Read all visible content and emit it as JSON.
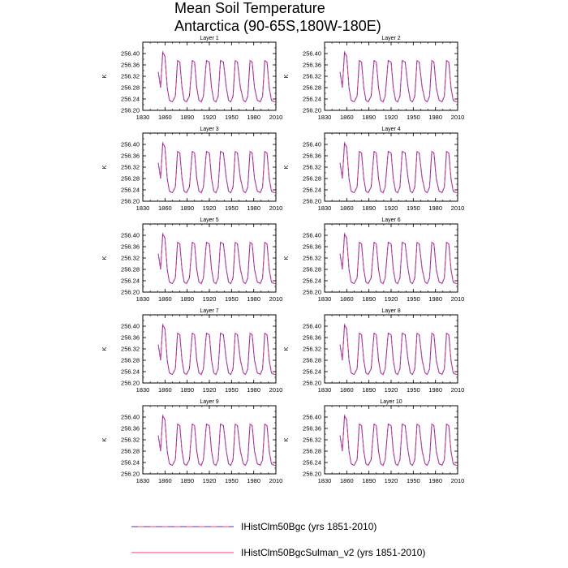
{
  "title": {
    "line1": "Mean Soil Temperature",
    "line2": "Antarctica (90-65S,180W-180E)"
  },
  "colors": {
    "series1": "#4b2ccc",
    "series2": "#ff3d6e"
  },
  "chart_data": {
    "type": "line",
    "xlim": [
      1830,
      2010
    ],
    "ylim": [
      256.2,
      256.44
    ],
    "xticks": [
      "1830",
      "1860",
      "1890",
      "1920",
      "1950",
      "1980",
      "2010"
    ],
    "yticks": [
      "256.20",
      "256.24",
      "256.28",
      "256.32",
      "256.36",
      "256.40"
    ],
    "ylabel": "K",
    "panels": [
      "Layer 1",
      "Layer 2",
      "Layer 3",
      "Layer 4",
      "Layer 5",
      "Layer 6",
      "Layer 7",
      "Layer 8",
      "Layer 9",
      "Layer 10"
    ],
    "series": [
      {
        "name": "IHistClm50Bgc (yrs 1851-2010)",
        "style": "dashed",
        "x": [
          1851,
          1854,
          1857,
          1860,
          1863,
          1866,
          1870,
          1874,
          1877,
          1880,
          1883,
          1886,
          1889,
          1893,
          1897,
          1900,
          1903,
          1906,
          1909,
          1912,
          1916,
          1920,
          1923,
          1926,
          1929,
          1932,
          1935,
          1939,
          1943,
          1946,
          1949,
          1952,
          1955,
          1958,
          1962,
          1966,
          1969,
          1972,
          1975,
          1978,
          1981,
          1985,
          1989,
          1992,
          1995,
          1998,
          2001,
          2004,
          2008,
          2010
        ],
        "y": [
          256.335,
          256.28,
          256.405,
          256.39,
          256.28,
          256.235,
          256.23,
          256.25,
          256.375,
          256.37,
          256.28,
          256.235,
          256.23,
          256.25,
          256.375,
          256.37,
          256.28,
          256.235,
          256.23,
          256.25,
          256.375,
          256.37,
          256.28,
          256.235,
          256.23,
          256.25,
          256.375,
          256.37,
          256.28,
          256.235,
          256.23,
          256.25,
          256.375,
          256.37,
          256.28,
          256.235,
          256.23,
          256.25,
          256.375,
          256.37,
          256.28,
          256.235,
          256.23,
          256.25,
          256.375,
          256.37,
          256.28,
          256.235,
          256.23,
          256.23
        ]
      },
      {
        "name": "IHistClm50BgcSulman_v2 (yrs 1851-2010)",
        "style": "solid",
        "x": [
          1851,
          1854,
          1857,
          1860,
          1863,
          1866,
          1870,
          1874,
          1877,
          1880,
          1883,
          1886,
          1889,
          1893,
          1897,
          1900,
          1903,
          1906,
          1909,
          1912,
          1916,
          1920,
          1923,
          1926,
          1929,
          1932,
          1935,
          1939,
          1943,
          1946,
          1949,
          1952,
          1955,
          1958,
          1962,
          1966,
          1969,
          1972,
          1975,
          1978,
          1981,
          1985,
          1989,
          1992,
          1995,
          1998,
          2001,
          2004,
          2008,
          2010
        ],
        "y": [
          256.335,
          256.28,
          256.405,
          256.39,
          256.28,
          256.235,
          256.23,
          256.25,
          256.375,
          256.37,
          256.28,
          256.235,
          256.23,
          256.25,
          256.375,
          256.37,
          256.28,
          256.235,
          256.23,
          256.25,
          256.375,
          256.37,
          256.28,
          256.235,
          256.23,
          256.25,
          256.375,
          256.37,
          256.28,
          256.235,
          256.23,
          256.25,
          256.375,
          256.37,
          256.28,
          256.235,
          256.23,
          256.25,
          256.375,
          256.37,
          256.28,
          256.235,
          256.23,
          256.25,
          256.375,
          256.37,
          256.28,
          256.235,
          256.23,
          256.23
        ]
      }
    ],
    "grid": false,
    "legend": "bottom"
  }
}
